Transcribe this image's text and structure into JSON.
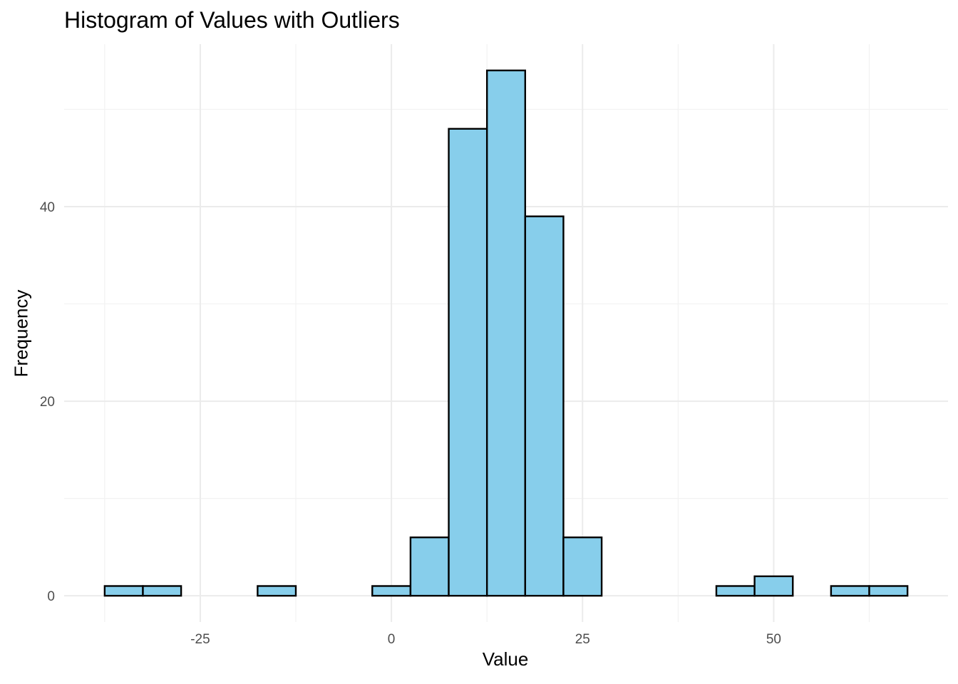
{
  "chart_data": {
    "type": "bar",
    "title": "Histogram of Values with Outliers",
    "xlabel": "Value",
    "ylabel": "Frequency",
    "bin_width": 5,
    "bins": [
      {
        "x0": -37.5,
        "x1": -32.5,
        "count": 1
      },
      {
        "x0": -32.5,
        "x1": -27.5,
        "count": 1
      },
      {
        "x0": -27.5,
        "x1": -22.5,
        "count": 0
      },
      {
        "x0": -22.5,
        "x1": -17.5,
        "count": 0
      },
      {
        "x0": -17.5,
        "x1": -12.5,
        "count": 1
      },
      {
        "x0": -12.5,
        "x1": -7.5,
        "count": 0
      },
      {
        "x0": -7.5,
        "x1": -2.5,
        "count": 0
      },
      {
        "x0": -2.5,
        "x1": 2.5,
        "count": 1
      },
      {
        "x0": 2.5,
        "x1": 7.5,
        "count": 6
      },
      {
        "x0": 7.5,
        "x1": 12.5,
        "count": 48
      },
      {
        "x0": 12.5,
        "x1": 17.5,
        "count": 54
      },
      {
        "x0": 17.5,
        "x1": 22.5,
        "count": 39
      },
      {
        "x0": 22.5,
        "x1": 27.5,
        "count": 6
      },
      {
        "x0": 27.5,
        "x1": 32.5,
        "count": 0
      },
      {
        "x0": 32.5,
        "x1": 37.5,
        "count": 0
      },
      {
        "x0": 37.5,
        "x1": 42.5,
        "count": 0
      },
      {
        "x0": 42.5,
        "x1": 47.5,
        "count": 1
      },
      {
        "x0": 47.5,
        "x1": 52.5,
        "count": 2
      },
      {
        "x0": 52.5,
        "x1": 57.5,
        "count": 0
      },
      {
        "x0": 57.5,
        "x1": 62.5,
        "count": 1
      },
      {
        "x0": 62.5,
        "x1": 67.5,
        "count": 1
      }
    ],
    "xlim": [
      -42.8,
      72.8
    ],
    "ylim": [
      -2.7,
      56.7
    ],
    "x_ticks": [
      -25,
      0,
      25,
      50
    ],
    "x_tick_labels": [
      "-25",
      "0",
      "25",
      "50"
    ],
    "x_minor_ticks": [
      -37.5,
      -12.5,
      12.5,
      37.5,
      62.5
    ],
    "y_ticks": [
      0,
      20,
      40
    ],
    "y_tick_labels": [
      "0",
      "20",
      "40"
    ],
    "y_minor_ticks": [
      10,
      30,
      50
    ],
    "bar_fill": "#87ceeb",
    "bar_stroke": "#000000",
    "grid": true,
    "legend": "none"
  }
}
